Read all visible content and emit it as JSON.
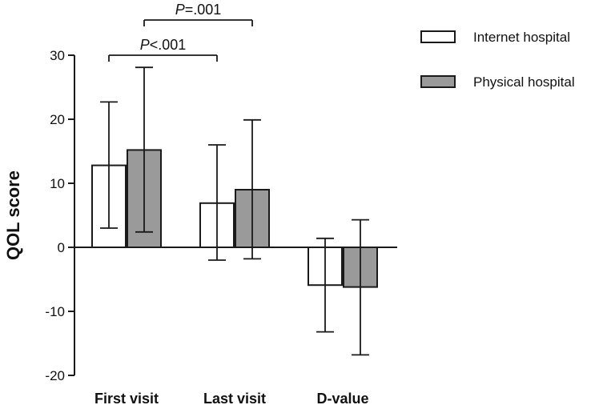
{
  "chart_data": {
    "type": "bar",
    "title": "",
    "xlabel": "",
    "ylabel": "QOL score",
    "ylim": [
      -20,
      30
    ],
    "yticks": [
      30,
      20,
      10,
      0,
      -10,
      -20
    ],
    "ytick_labels": [
      "30",
      "20",
      "10",
      "0",
      "-10",
      "-20"
    ],
    "categories": [
      "First visit",
      "Last visit",
      "D-value"
    ],
    "series": [
      {
        "name": "Internet hospital",
        "color": "#ffffff",
        "values": [
          12.8,
          6.9,
          -5.9
        ],
        "error_low": [
          3.0,
          -2.0,
          -13.2
        ],
        "error_high": [
          22.7,
          16.0,
          1.4
        ]
      },
      {
        "name": "Physical hospital",
        "color": "#9a9a9a",
        "values": [
          15.2,
          9.0,
          -6.2
        ],
        "error_low": [
          2.4,
          -1.8,
          -16.8
        ],
        "error_high": [
          28.1,
          19.9,
          4.3
        ]
      }
    ],
    "legend_position": "top-right",
    "grid": false,
    "annotations": [
      {
        "prefix": "P",
        "text": "=.001",
        "from": {
          "category": 0,
          "series": 1
        },
        "to": {
          "category": 1,
          "series": 1
        },
        "level": 35.5
      },
      {
        "prefix": "P",
        "text": "<.001",
        "from": {
          "category": 0,
          "series": 0
        },
        "to": {
          "category": 1,
          "series": 0
        },
        "level": 30.0
      }
    ]
  }
}
